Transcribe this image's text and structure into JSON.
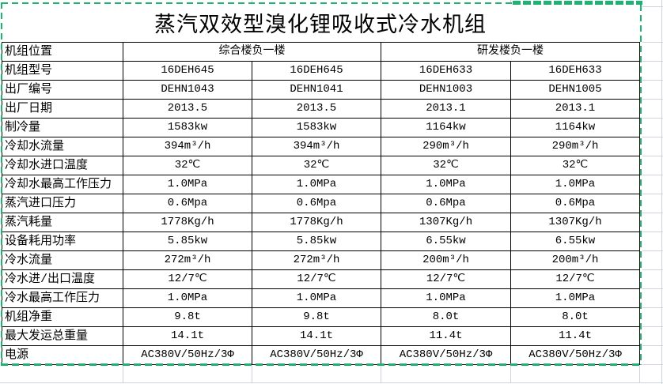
{
  "title": "蒸汽双效型溴化锂吸收式冷水机组",
  "table": {
    "location_row": {
      "label": "机组位置",
      "groups": [
        "综合楼负一楼",
        "研发楼负一楼"
      ]
    },
    "rows": [
      {
        "label": "机组型号",
        "values": [
          "16DEH645",
          "16DEH645",
          "16DEH633",
          "16DEH633"
        ]
      },
      {
        "label": "出厂编号",
        "values": [
          "DEHN1043",
          "DEHN1041",
          "DEHN1003",
          "DEHN1005"
        ]
      },
      {
        "label": "出厂日期",
        "values": [
          "2013.5",
          "2013.5",
          "2013.1",
          "2013.1"
        ]
      },
      {
        "label": "制冷量",
        "values": [
          "1583kw",
          "1583kw",
          "1164kw",
          "1164kw"
        ]
      },
      {
        "label": "冷却水流量",
        "values": [
          "394m³/h",
          "394m³/h",
          "290m³/h",
          "290m³/h"
        ]
      },
      {
        "label": "冷却水进口温度",
        "values": [
          "32℃",
          "32℃",
          "32℃",
          "32℃"
        ]
      },
      {
        "label": "冷却水最高工作压力",
        "values": [
          "1.0MPa",
          "1.0MPa",
          "1.0MPa",
          "1.0MPa"
        ]
      },
      {
        "label": "蒸汽进口压力",
        "values": [
          "0.6Mpa",
          "0.6Mpa",
          "0.6Mpa",
          "0.6Mpa"
        ]
      },
      {
        "label": "蒸汽耗量",
        "values": [
          "1778Kg/h",
          "1778Kg/h",
          "1307Kg/h",
          "1307Kg/h"
        ]
      },
      {
        "label": "设备耗用功率",
        "values": [
          "5.85kw",
          "5.85kw",
          "6.55kw",
          "6.55kw"
        ]
      },
      {
        "label": "冷水流量",
        "values": [
          "272m³/h",
          "272m³/h",
          "200m³/h",
          "200m³/h"
        ]
      },
      {
        "label": "冷水进/出口温度",
        "values": [
          "12/7℃",
          "12/7℃",
          "12/7℃",
          "12/7℃"
        ]
      },
      {
        "label": "冷水最高工作压力",
        "values": [
          "1.0MPa",
          "1.0MPa",
          "1.0MPa",
          "1.0MPa"
        ]
      },
      {
        "label": "机组净重",
        "values": [
          "9.8t",
          "9.8t",
          "8.0t",
          "8.0t"
        ]
      },
      {
        "label": "最大发运总重量",
        "values": [
          "14.1t",
          "14.1t",
          "11.4t",
          "11.4t"
        ]
      },
      {
        "label": "电源",
        "values": [
          "AC380V/50Hz/3Φ",
          "AC380V/50Hz/3Φ",
          "AC380V/50Hz/3Φ",
          "AC380V/50Hz/3Φ"
        ]
      }
    ]
  },
  "colors": {
    "selection_green": "#20b273",
    "gridline": "#ccd3dc",
    "table_border": "#000000"
  }
}
